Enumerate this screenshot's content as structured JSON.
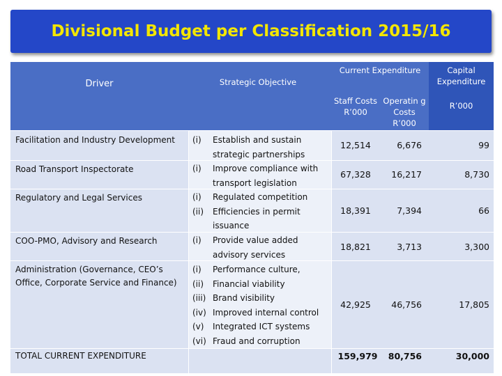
{
  "title": "Divisional Budget per Classification 2015/16",
  "headers": {
    "driver": "Driver",
    "strategic_objective": "Strategic Objective",
    "current_expenditure": "Current Expenditure",
    "capital_expenditure": "Capital Expenditure",
    "staff_costs": "Staff Costs R’000",
    "operating_costs": "Operatin g Costs R’000",
    "capital_unit": "R’000"
  },
  "rows": [
    {
      "driver": "Facilitation and Industry Development",
      "numerals": "(i)",
      "objectives": "Establish and sustain strategic partnerships",
      "staff": "12,514",
      "operating": "6,676",
      "capital": "99"
    },
    {
      "driver": "Road Transport Inspectorate",
      "numerals": "(i)",
      "objectives": "Improve compliance with transport legislation",
      "staff": "67,328",
      "operating": "16,217",
      "capital": "8,730"
    },
    {
      "driver": "Regulatory and Legal Services",
      "numerals": "(i)\n(ii)",
      "objectives": "Regulated competition\nEfficiencies in permit issuance",
      "staff": "18,391",
      "operating": "7,394",
      "capital": "66"
    },
    {
      "driver": "COO-PMO, Advisory and Research",
      "numerals": "(i)",
      "objectives": "Provide value added advisory services",
      "staff": "18,821",
      "operating": "3,713",
      "capital": "3,300"
    },
    {
      "driver": "Administration (Governance, CEO’s Office, Corporate Service and Finance)",
      "numerals": "(i)\n(ii)\n(iii)\n(iv)\n(v)\n(vi)",
      "objectives": "Performance culture,\nFinancial viability\nBrand visibility\nImproved internal control\nIntegrated ICT systems\nFraud and corruption",
      "staff": "42,925",
      "operating": "46,756",
      "capital": "17,805"
    }
  ],
  "total": {
    "label": "TOTAL CURRENT EXPENDITURE",
    "staff": "159,979",
    "operating": "80,756",
    "capital": "30,000"
  }
}
